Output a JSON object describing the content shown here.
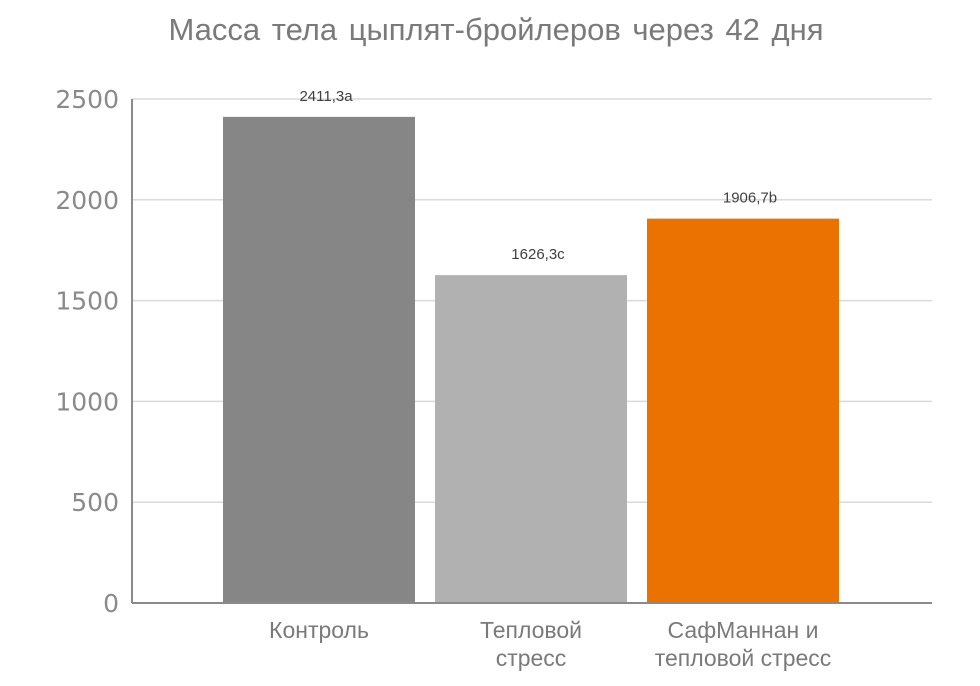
{
  "chart_data": {
    "type": "bar",
    "title": "Масса тела цыплят-бройлеров через 42 дня",
    "xlabel": "",
    "ylabel": "",
    "categories": [
      [
        "Контроль"
      ],
      [
        "Тепловой",
        "стресс"
      ],
      [
        "СафМаннан и",
        "тепловой стресс"
      ]
    ],
    "values": [
      2411.3,
      1626.3,
      1906.7
    ],
    "data_labels": [
      "2411,3a",
      "1626,3c",
      "1906,7b"
    ],
    "colors": [
      "#868686",
      "#b1b1b1",
      "#ec7200"
    ],
    "ylim": [
      0,
      2500
    ],
    "yticks": [
      0,
      500,
      1000,
      1500,
      2000,
      2500
    ],
    "grid": true,
    "legend": "none"
  }
}
